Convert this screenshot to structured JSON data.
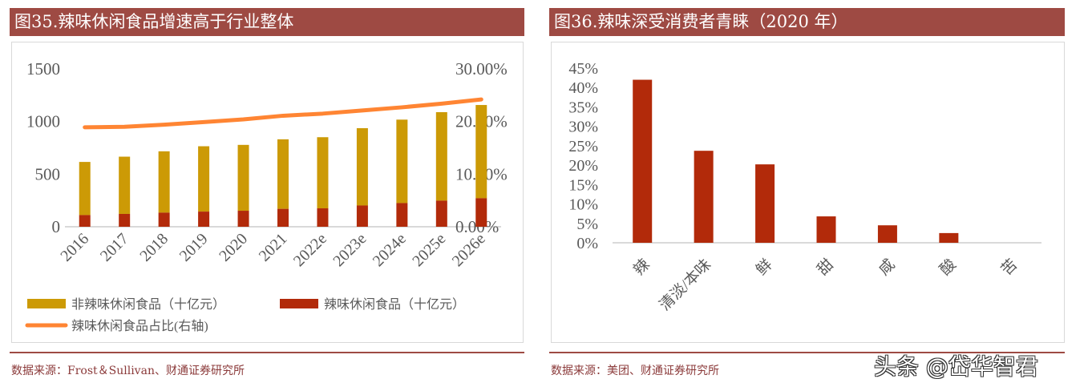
{
  "left": {
    "title": "图35.辣味休闲食品增速高于行业整体",
    "source": "数据来源：Frost＆Sullivan、财通证券研究所"
  },
  "right": {
    "title": "图36.辣味深受消费者青睐（2020 年）",
    "source": "数据来源：美团、财通证券研究所"
  },
  "watermark": "头条 @岱华智君",
  "chart_data": [
    {
      "type": "bar",
      "stacked": true,
      "categories": [
        "2016",
        "2017",
        "2018",
        "2019",
        "2020",
        "2021",
        "2022e",
        "2023e",
        "2024e",
        "2025e",
        "2026e"
      ],
      "series": [
        {
          "name": "辣味休闲食品（十亿元）",
          "color": "#B22A0A",
          "values": [
            111,
            122,
            134,
            144,
            152,
            170,
            175,
            202,
            225,
            248,
            271
          ]
        },
        {
          "name": "非辣味休闲食品（十亿元）",
          "color": "#CC9A06",
          "values": [
            505,
            544,
            583,
            621,
            626,
            661,
            676,
            735,
            793,
            841,
            886
          ]
        },
        {
          "name": "辣味休闲食品占比(右轴)",
          "type": "line",
          "axis": "right",
          "color": "#FF8533",
          "values": [
            18.9,
            19.0,
            19.4,
            19.9,
            20.4,
            21.1,
            21.5,
            22.1,
            22.7,
            23.4,
            24.2
          ]
        }
      ],
      "yticks": [
        "0",
        "500",
        "1000",
        "1500"
      ],
      "ylim": [
        0,
        1500
      ],
      "y2ticks": [
        "0.00%",
        "10.00%",
        "20.00%",
        "30.00%"
      ],
      "y2lim": [
        0,
        30
      ],
      "legend": "bottom"
    },
    {
      "type": "bar",
      "categories": [
        "辣",
        "清淡/本味",
        "鲜",
        "甜",
        "咸",
        "酸",
        "苦"
      ],
      "values": [
        42,
        23.7,
        20.2,
        6.8,
        4.5,
        2.5,
        0
      ],
      "color": "#B22A0A",
      "yticks": [
        "0%",
        "5%",
        "10%",
        "15%",
        "20%",
        "25%",
        "30%",
        "35%",
        "40%",
        "45%"
      ],
      "ylim": [
        0,
        45
      ]
    }
  ]
}
